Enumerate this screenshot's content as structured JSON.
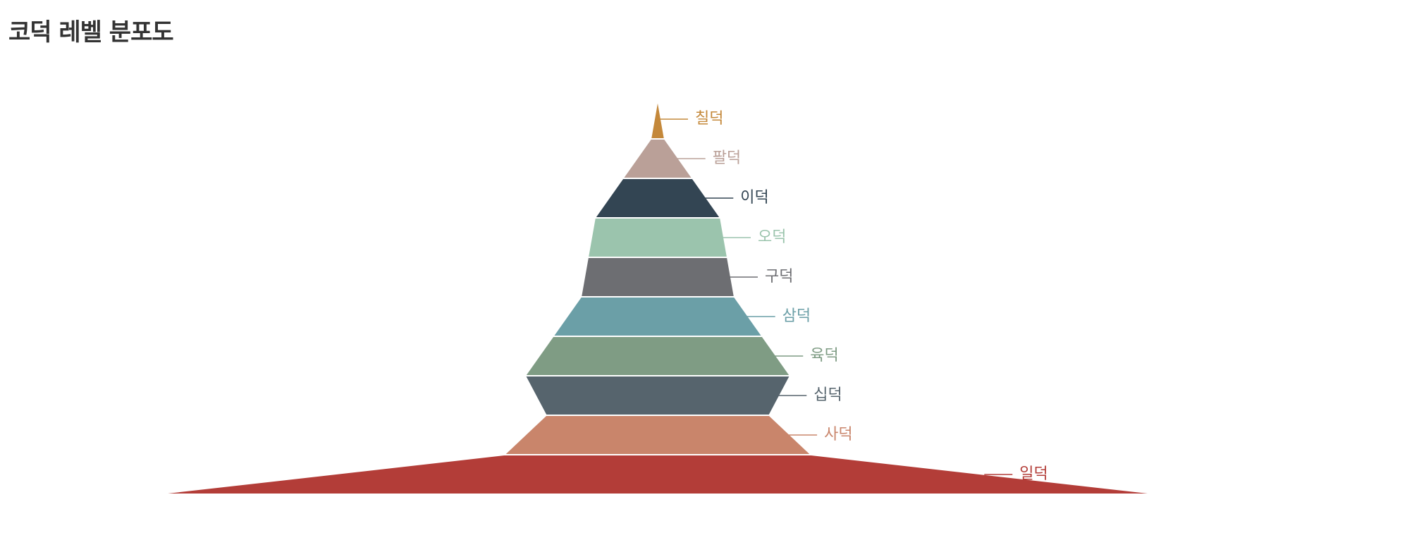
{
  "chart_data": {
    "type": "funnel",
    "title": "코덕 레벨 분포도",
    "layers": [
      {
        "name": "칠덕",
        "value": 1,
        "color": "#c4883a"
      },
      {
        "name": "팔덕",
        "value": 5,
        "color": "#baa098"
      },
      {
        "name": "이덕",
        "value": 9,
        "color": "#334553"
      },
      {
        "name": "오덕",
        "value": 10,
        "color": "#9bc4ad"
      },
      {
        "name": "구덕",
        "value": 11,
        "color": "#6d6e72"
      },
      {
        "name": "삼덕",
        "value": 15,
        "color": "#6b9fa7"
      },
      {
        "name": "육덕",
        "value": 19,
        "color": "#7f9c84"
      },
      {
        "name": "십덕",
        "value": 16,
        "color": "#56646d"
      },
      {
        "name": "사덕",
        "value": 22,
        "color": "#c9856b"
      },
      {
        "name": "일덕",
        "value": 72,
        "color": "#b33d38"
      }
    ]
  }
}
